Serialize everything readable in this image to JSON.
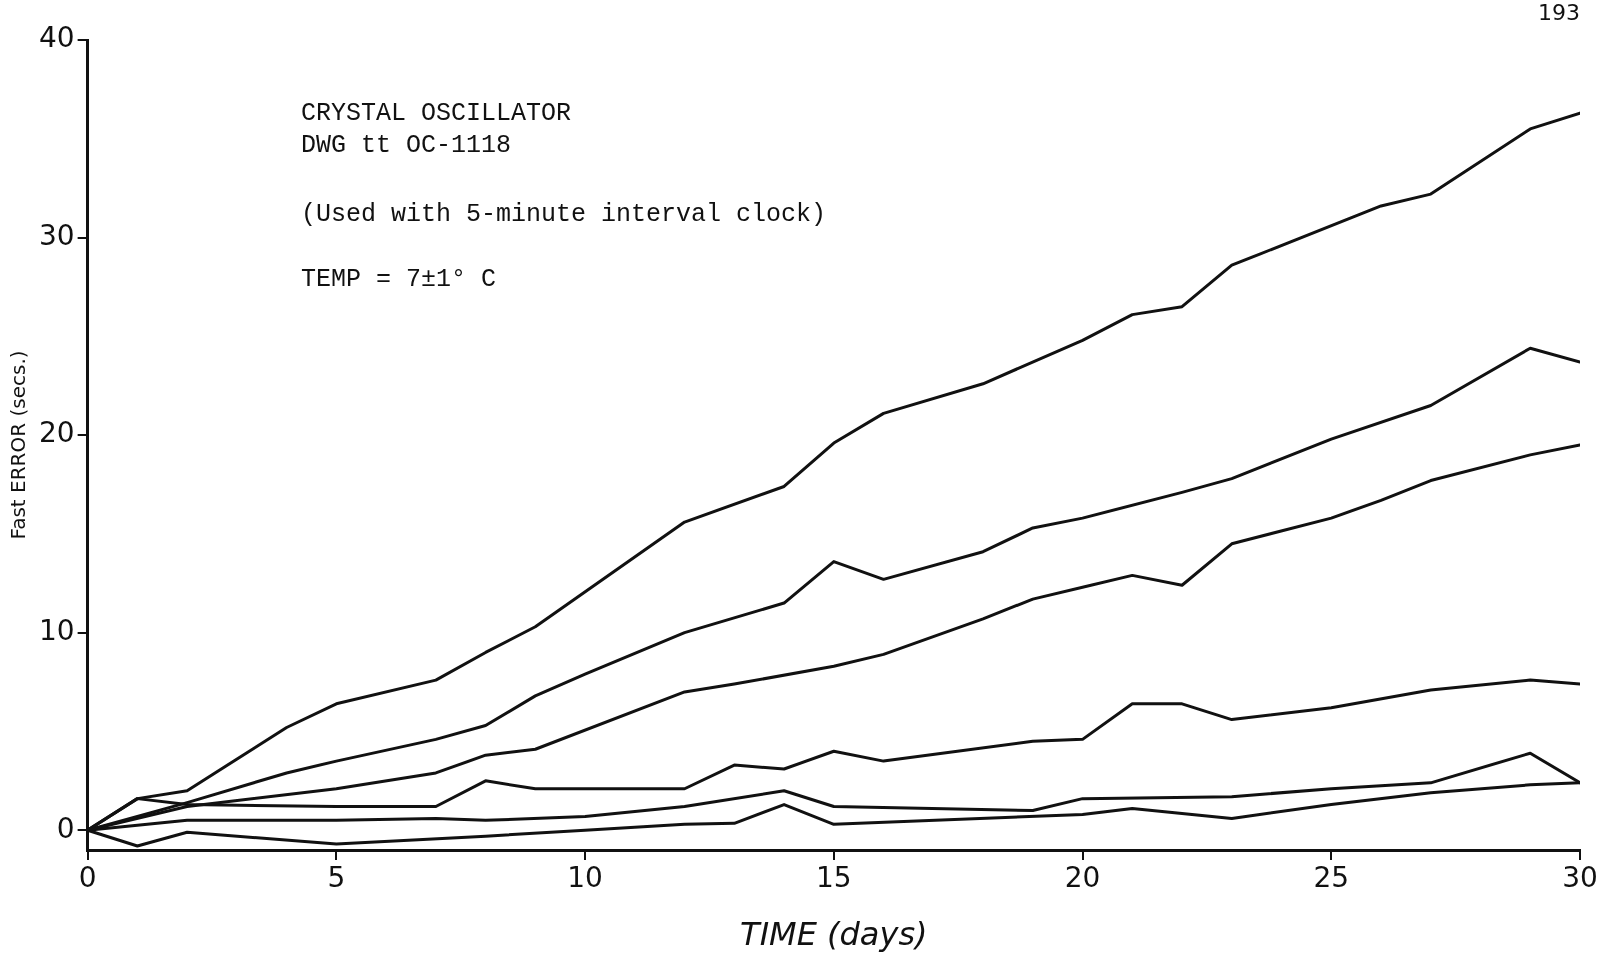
{
  "chart_data": {
    "type": "line",
    "xlabel": "TIME (days)",
    "ylabel": "Fast ERROR (secs.)",
    "annotations": [
      "CRYSTAL OSCILLATOR",
      "DWG tt OC-1118",
      "(Used with 5-minute interval clock)",
      "TEMP = 7±1° C",
      "193"
    ],
    "xlim": [
      0,
      30
    ],
    "xticks": [
      0,
      5,
      10,
      15,
      20,
      25,
      30
    ],
    "ylim": [
      -1,
      40
    ],
    "yticks": [
      0,
      10,
      20,
      30,
      40
    ],
    "marker": "none",
    "line_style": "solid",
    "series": [
      {
        "color": "#111111",
        "x": [
          0,
          1,
          2,
          4,
          5,
          7,
          8,
          9,
          12,
          14,
          15,
          16,
          18,
          20,
          21,
          22,
          23,
          26,
          27,
          29,
          30
        ],
        "values": [
          0,
          1.6,
          2.0,
          5.2,
          6.4,
          7.6,
          9.0,
          10.3,
          15.6,
          17.4,
          19.6,
          21.1,
          22.6,
          24.8,
          26.1,
          26.5,
          28.6,
          31.6,
          32.2,
          35.5,
          36.3
        ]
      },
      {
        "color": "#111111",
        "x": [
          0,
          2,
          4,
          5,
          7,
          8,
          9,
          10,
          12,
          14,
          15,
          16,
          18,
          19,
          20,
          22,
          23,
          25,
          27,
          29,
          30
        ],
        "values": [
          0,
          1.4,
          2.9,
          3.5,
          4.6,
          5.3,
          6.8,
          7.9,
          10.0,
          11.5,
          13.6,
          12.7,
          14.1,
          15.3,
          15.8,
          17.1,
          17.8,
          19.8,
          21.5,
          24.4,
          23.7
        ]
      },
      {
        "color": "#111111",
        "x": [
          0,
          2,
          5,
          7,
          8,
          9,
          12,
          13,
          15,
          16,
          18,
          19,
          20,
          21,
          22,
          23,
          25,
          26,
          27,
          29,
          30
        ],
        "values": [
          0,
          1.2,
          2.1,
          2.9,
          3.8,
          4.1,
          7.0,
          7.4,
          8.3,
          8.9,
          10.7,
          11.7,
          12.3,
          12.9,
          12.4,
          14.5,
          15.8,
          16.7,
          17.7,
          19.0,
          19.5
        ]
      },
      {
        "color": "#111111",
        "x": [
          0,
          1,
          2,
          5,
          7,
          8,
          9,
          12,
          13,
          14,
          15,
          16,
          19,
          20,
          21,
          22,
          23,
          25,
          27,
          29,
          30
        ],
        "values": [
          0,
          1.6,
          1.3,
          1.2,
          1.2,
          2.5,
          2.1,
          2.1,
          3.3,
          3.1,
          4.0,
          3.5,
          4.5,
          4.6,
          6.4,
          6.4,
          5.6,
          6.2,
          7.1,
          7.6,
          7.4
        ]
      },
      {
        "color": "#111111",
        "x": [
          0,
          2,
          5,
          7,
          8,
          10,
          12,
          14,
          15,
          19,
          20,
          23,
          25,
          27,
          29,
          30
        ],
        "values": [
          0,
          0.5,
          0.5,
          0.6,
          0.5,
          0.7,
          1.2,
          2.0,
          1.2,
          1.0,
          1.6,
          1.7,
          2.1,
          2.4,
          3.9,
          2.4
        ]
      },
      {
        "color": "#111111",
        "x": [
          0,
          1,
          2,
          5,
          8,
          10,
          12,
          13,
          14,
          15,
          20,
          21,
          23,
          25,
          27,
          29,
          30
        ],
        "values": [
          0,
          -0.8,
          -0.1,
          -0.7,
          -0.3,
          0.0,
          0.3,
          0.35,
          1.3,
          0.3,
          0.8,
          1.1,
          0.6,
          1.3,
          1.9,
          2.3,
          2.4
        ]
      }
    ]
  }
}
